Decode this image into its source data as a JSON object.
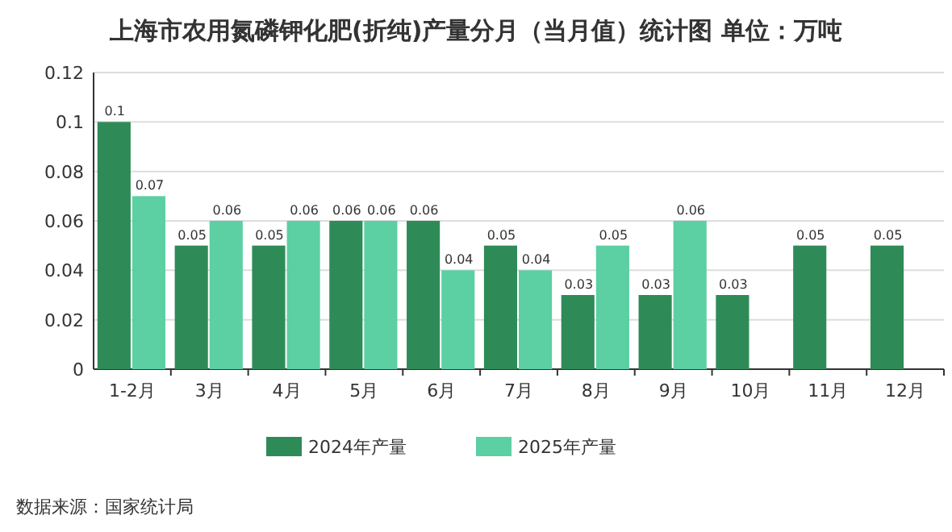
{
  "chart_data": {
    "type": "bar",
    "title": "上海市农用氮磷钾化肥(折纯)产量分月（当月值）统计图 单位：万吨",
    "categories": [
      "1-2月",
      "3月",
      "4月",
      "5月",
      "6月",
      "7月",
      "8月",
      "9月",
      "10月",
      "11月",
      "12月"
    ],
    "series": [
      {
        "name": "2024年产量",
        "color": "#2e8b57",
        "values": [
          0.1,
          0.05,
          0.05,
          0.06,
          0.06,
          0.05,
          0.03,
          0.03,
          0.03,
          0.05,
          0.05
        ]
      },
      {
        "name": "2025年产量",
        "color": "#5ccfa3",
        "values": [
          0.07,
          0.06,
          0.06,
          0.06,
          0.04,
          0.04,
          0.05,
          0.06,
          null,
          null,
          null
        ]
      }
    ],
    "ylim": [
      0,
      0.12
    ],
    "yticks": [
      0,
      0.02,
      0.04,
      0.06,
      0.08,
      0.1,
      0.12
    ],
    "grid": "y",
    "legend": "bottom",
    "data_labels": true,
    "annotations": [
      "数据来源：国家统计局"
    ]
  }
}
